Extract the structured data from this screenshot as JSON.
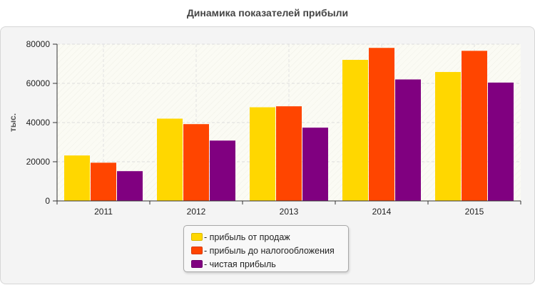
{
  "title": "Динамика показателей прибыли",
  "chart_data": {
    "type": "bar",
    "categories": [
      "2011",
      "2012",
      "2013",
      "2014",
      "2015"
    ],
    "series": [
      {
        "name": "- прибыль от продаж",
        "color": "#FFD700",
        "values": [
          23200,
          42000,
          47800,
          72000,
          65800
        ]
      },
      {
        "name": "- прибыль до налогообложения",
        "color": "#FF4500",
        "values": [
          19500,
          39200,
          48300,
          78100,
          76600
        ]
      },
      {
        "name": "- чистая прибыль",
        "color": "#800080",
        "values": [
          15200,
          30800,
          37400,
          62000,
          60400
        ]
      }
    ],
    "xlabel": "",
    "ylabel": "тыс.",
    "ylim": [
      0,
      80000
    ],
    "yticks": [
      0,
      20000,
      40000,
      60000,
      80000
    ],
    "grid": true,
    "legend_position": "bottom-center"
  }
}
